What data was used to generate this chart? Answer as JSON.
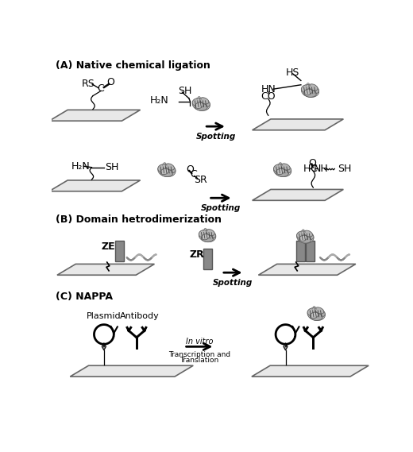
{
  "panels": {
    "A_label": "(A) Native chemical ligation",
    "B_label": "(B) Domain hetrodimerization",
    "C_label": "(C) NAPPA"
  },
  "colors": {
    "black": "#000000",
    "white": "#ffffff",
    "surface_face": "#e8e8e8",
    "surface_edge": "#666666",
    "protein_light": "#d0d0d0",
    "protein_mid": "#a0a0a0",
    "protein_dark": "#606060",
    "rect_gray": "#888888",
    "rect_dark": "#555555",
    "helix_color": "#999999"
  },
  "figsize": [
    5.2,
    5.69
  ],
  "dpi": 100
}
